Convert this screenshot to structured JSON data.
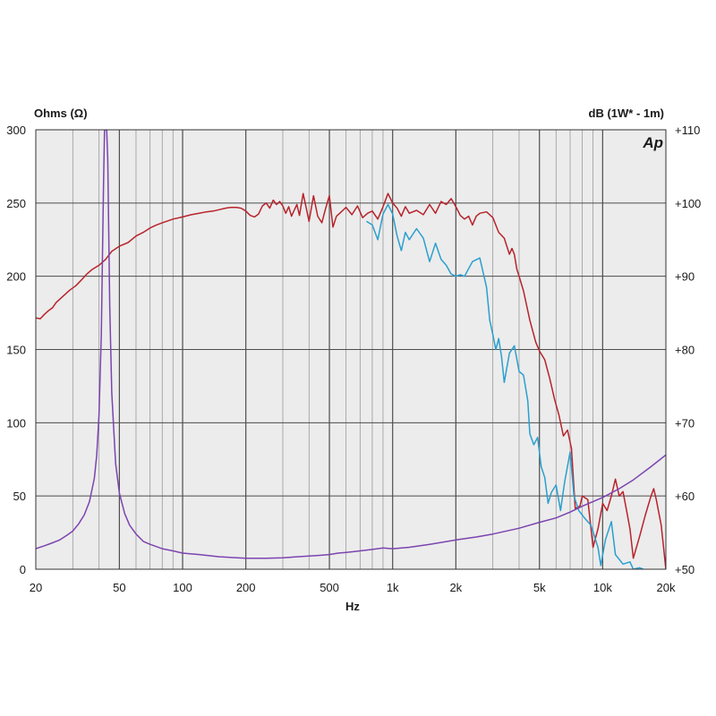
{
  "chart_data": {
    "type": "line",
    "left_axis_title": "Ohms (Ω)",
    "right_axis_title": "dB (1W* - 1m)",
    "xlabel": "Hz",
    "logo_text": "Ap",
    "x_scale": "log",
    "xlim": [
      20,
      20000
    ],
    "ylim_left": [
      0,
      300
    ],
    "ylim_right": [
      50,
      110
    ],
    "grid": true,
    "background_color": "#ececec",
    "x_ticks": [
      {
        "value": 20,
        "label": "20"
      },
      {
        "value": 50,
        "label": "50"
      },
      {
        "value": 100,
        "label": "100"
      },
      {
        "value": 200,
        "label": "200"
      },
      {
        "value": 500,
        "label": "500"
      },
      {
        "value": 1000,
        "label": "1k"
      },
      {
        "value": 2000,
        "label": "2k"
      },
      {
        "value": 5000,
        "label": "5k"
      },
      {
        "value": 10000,
        "label": "10k"
      },
      {
        "value": 20000,
        "label": "20k"
      }
    ],
    "y_left_ticks": [
      {
        "value": 0,
        "label": "0"
      },
      {
        "value": 50,
        "label": "50"
      },
      {
        "value": 100,
        "label": "100"
      },
      {
        "value": 150,
        "label": "150"
      },
      {
        "value": 200,
        "label": "200"
      },
      {
        "value": 250,
        "label": "250"
      },
      {
        "value": 300,
        "label": "300"
      }
    ],
    "y_right_ticks": [
      {
        "value": 50,
        "label": "+50"
      },
      {
        "value": 60,
        "label": "+60"
      },
      {
        "value": 70,
        "label": "+70"
      },
      {
        "value": 80,
        "label": "+80"
      },
      {
        "value": 90,
        "label": "+90"
      },
      {
        "value": 100,
        "label": "+100"
      },
      {
        "value": 110,
        "label": "+110"
      }
    ],
    "series": [
      {
        "axis": "right",
        "color": "#b8232b",
        "points": [
          [
            20,
            84.3
          ],
          [
            21,
            84.2
          ],
          [
            22,
            84.8
          ],
          [
            23,
            85.3
          ],
          [
            24,
            85.7
          ],
          [
            25,
            86.4
          ],
          [
            27,
            87.3
          ],
          [
            29,
            88.1
          ],
          [
            31,
            88.7
          ],
          [
            33,
            89.5
          ],
          [
            35,
            90.3
          ],
          [
            37,
            90.9
          ],
          [
            40,
            91.5
          ],
          [
            43,
            92.3
          ],
          [
            46,
            93.4
          ],
          [
            50,
            94.1
          ],
          [
            55,
            94.6
          ],
          [
            60,
            95.5
          ],
          [
            65,
            96.0
          ],
          [
            70,
            96.6
          ],
          [
            75,
            97.0
          ],
          [
            80,
            97.3
          ],
          [
            90,
            97.8
          ],
          [
            100,
            98.1
          ],
          [
            110,
            98.4
          ],
          [
            120,
            98.6
          ],
          [
            130,
            98.8
          ],
          [
            140,
            98.9
          ],
          [
            150,
            99.1
          ],
          [
            160,
            99.3
          ],
          [
            170,
            99.4
          ],
          [
            180,
            99.4
          ],
          [
            190,
            99.3
          ],
          [
            200,
            98.9
          ],
          [
            210,
            98.3
          ],
          [
            220,
            98.1
          ],
          [
            230,
            98.5
          ],
          [
            240,
            99.6
          ],
          [
            250,
            100.0
          ],
          [
            260,
            99.3
          ],
          [
            270,
            100.4
          ],
          [
            280,
            99.8
          ],
          [
            290,
            100.2
          ],
          [
            300,
            99.6
          ],
          [
            310,
            98.6
          ],
          [
            320,
            99.5
          ],
          [
            330,
            98.2
          ],
          [
            340,
            99.0
          ],
          [
            350,
            99.8
          ],
          [
            360,
            98.3
          ],
          [
            375,
            101.3
          ],
          [
            390,
            99.0
          ],
          [
            400,
            97.5
          ],
          [
            420,
            101.0
          ],
          [
            440,
            98.2
          ],
          [
            460,
            97.3
          ],
          [
            480,
            99.3
          ],
          [
            500,
            101.0
          ],
          [
            520,
            96.7
          ],
          [
            540,
            98.2
          ],
          [
            560,
            98.6
          ],
          [
            600,
            99.4
          ],
          [
            640,
            98.4
          ],
          [
            680,
            99.6
          ],
          [
            720,
            98.0
          ],
          [
            760,
            98.6
          ],
          [
            800,
            98.9
          ],
          [
            850,
            97.8
          ],
          [
            900,
            99.5
          ],
          [
            950,
            101.3
          ],
          [
            1000,
            100.0
          ],
          [
            1050,
            99.3
          ],
          [
            1100,
            98.2
          ],
          [
            1150,
            99.5
          ],
          [
            1200,
            98.6
          ],
          [
            1300,
            99.0
          ],
          [
            1400,
            98.4
          ],
          [
            1500,
            99.8
          ],
          [
            1600,
            98.6
          ],
          [
            1700,
            100.2
          ],
          [
            1800,
            99.8
          ],
          [
            1900,
            100.6
          ],
          [
            2000,
            99.5
          ],
          [
            2100,
            98.3
          ],
          [
            2200,
            97.8
          ],
          [
            2300,
            98.2
          ],
          [
            2400,
            97.0
          ],
          [
            2500,
            98.2
          ],
          [
            2600,
            98.6
          ],
          [
            2800,
            98.8
          ],
          [
            3000,
            98.0
          ],
          [
            3200,
            96.0
          ],
          [
            3400,
            95.2
          ],
          [
            3600,
            93.0
          ],
          [
            3700,
            93.8
          ],
          [
            3800,
            93.0
          ],
          [
            3900,
            91.0
          ],
          [
            4000,
            90.0
          ],
          [
            4200,
            88.0
          ],
          [
            4500,
            84.0
          ],
          [
            4800,
            81.0
          ],
          [
            5000,
            79.8
          ],
          [
            5300,
            78.6
          ],
          [
            5600,
            76.0
          ],
          [
            5900,
            73.2
          ],
          [
            6200,
            71.0
          ],
          [
            6500,
            68.2
          ],
          [
            6800,
            69.0
          ],
          [
            7100,
            66.5
          ],
          [
            7400,
            58.3
          ],
          [
            7800,
            58.6
          ],
          [
            8000,
            60.0
          ],
          [
            8500,
            59.5
          ],
          [
            9000,
            53.0
          ],
          [
            9500,
            55.5
          ],
          [
            10000,
            59.0
          ],
          [
            10500,
            58.0
          ],
          [
            11000,
            60.0
          ],
          [
            11500,
            62.3
          ],
          [
            12000,
            60.0
          ],
          [
            12500,
            60.6
          ],
          [
            13000,
            58.0
          ],
          [
            13500,
            55.5
          ],
          [
            14000,
            51.5
          ],
          [
            15000,
            54.5
          ],
          [
            16000,
            57.5
          ],
          [
            17000,
            60.0
          ],
          [
            17500,
            61.0
          ],
          [
            18000,
            59.5
          ],
          [
            19000,
            56.0
          ],
          [
            20000,
            50.0
          ]
        ]
      },
      {
        "axis": "right",
        "color": "#2a9fcf",
        "points": [
          [
            750,
            97.5
          ],
          [
            800,
            97.0
          ],
          [
            850,
            95.0
          ],
          [
            900,
            98.5
          ],
          [
            950,
            99.8
          ],
          [
            1000,
            98.5
          ],
          [
            1050,
            95.5
          ],
          [
            1100,
            93.5
          ],
          [
            1150,
            96.0
          ],
          [
            1200,
            95.0
          ],
          [
            1300,
            96.5
          ],
          [
            1400,
            95.2
          ],
          [
            1500,
            92.0
          ],
          [
            1600,
            94.5
          ],
          [
            1700,
            92.3
          ],
          [
            1800,
            91.5
          ],
          [
            1900,
            90.3
          ],
          [
            2000,
            90.0
          ],
          [
            2100,
            90.2
          ],
          [
            2200,
            90.0
          ],
          [
            2400,
            92.0
          ],
          [
            2600,
            92.5
          ],
          [
            2800,
            88.5
          ],
          [
            2900,
            84.0
          ],
          [
            3000,
            82.0
          ],
          [
            3100,
            80.0
          ],
          [
            3200,
            81.5
          ],
          [
            3300,
            79.0
          ],
          [
            3400,
            75.5
          ],
          [
            3600,
            79.5
          ],
          [
            3800,
            80.5
          ],
          [
            4000,
            77.0
          ],
          [
            4200,
            76.5
          ],
          [
            4400,
            73.0
          ],
          [
            4500,
            68.5
          ],
          [
            4700,
            67.0
          ],
          [
            4900,
            68.0
          ],
          [
            5100,
            64.0
          ],
          [
            5300,
            62.5
          ],
          [
            5500,
            59.0
          ],
          [
            5700,
            60.5
          ],
          [
            6000,
            61.5
          ],
          [
            6300,
            58.0
          ],
          [
            6600,
            62.0
          ],
          [
            7000,
            66.0
          ],
          [
            7300,
            60.0
          ],
          [
            7700,
            58.0
          ],
          [
            8200,
            57.0
          ],
          [
            8800,
            56.0
          ],
          [
            9500,
            53.0
          ],
          [
            9800,
            50.5
          ],
          [
            10300,
            54.0
          ],
          [
            11000,
            56.5
          ],
          [
            11500,
            52.0
          ],
          [
            12500,
            50.7
          ],
          [
            13500,
            51.0
          ],
          [
            14000,
            50.0
          ],
          [
            15000,
            50.2
          ],
          [
            15600,
            50.0
          ]
        ]
      },
      {
        "axis": "left",
        "color": "#7b44b0",
        "points": [
          [
            20,
            14
          ],
          [
            22,
            16
          ],
          [
            24,
            18
          ],
          [
            26,
            20
          ],
          [
            28,
            23
          ],
          [
            30,
            26
          ],
          [
            32,
            31
          ],
          [
            34,
            37
          ],
          [
            36,
            46
          ],
          [
            38,
            62
          ],
          [
            39,
            78
          ],
          [
            40,
            105
          ],
          [
            41,
            160
          ],
          [
            42,
            260
          ],
          [
            42.5,
            300
          ],
          [
            43.5,
            300
          ],
          [
            44,
            280
          ],
          [
            45,
            180
          ],
          [
            46,
            120
          ],
          [
            48,
            72
          ],
          [
            50,
            52
          ],
          [
            53,
            38
          ],
          [
            56,
            30
          ],
          [
            60,
            24
          ],
          [
            65,
            19
          ],
          [
            70,
            17
          ],
          [
            80,
            14
          ],
          [
            90,
            12.5
          ],
          [
            100,
            11
          ],
          [
            120,
            10
          ],
          [
            150,
            8.5
          ],
          [
            200,
            7.5
          ],
          [
            250,
            7.5
          ],
          [
            300,
            7.8
          ],
          [
            350,
            8.5
          ],
          [
            400,
            9
          ],
          [
            450,
            9.5
          ],
          [
            500,
            10
          ],
          [
            550,
            11
          ],
          [
            600,
            11.5
          ],
          [
            650,
            12
          ],
          [
            700,
            12.5
          ],
          [
            800,
            13.5
          ],
          [
            900,
            14.5
          ],
          [
            1000,
            14
          ],
          [
            1200,
            15
          ],
          [
            1500,
            17
          ],
          [
            2000,
            20
          ],
          [
            2500,
            22
          ],
          [
            3000,
            24
          ],
          [
            4000,
            28
          ],
          [
            5000,
            32
          ],
          [
            6000,
            35
          ],
          [
            7000,
            39
          ],
          [
            8000,
            43
          ],
          [
            10000,
            49
          ],
          [
            12000,
            55
          ],
          [
            14000,
            61
          ],
          [
            17000,
            70
          ],
          [
            20000,
            78
          ]
        ]
      }
    ]
  }
}
